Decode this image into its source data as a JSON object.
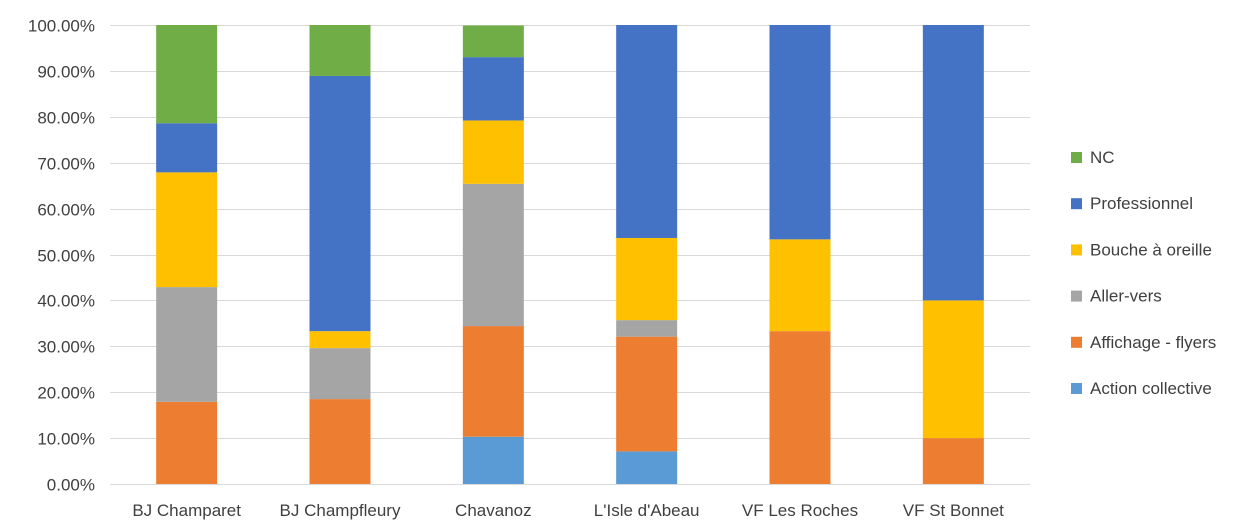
{
  "chart_data": {
    "type": "bar",
    "stacked": true,
    "percent": true,
    "title": "",
    "xlabel": "",
    "ylabel": "",
    "ylim": [
      0,
      1
    ],
    "y_ticks": [
      "0.00%",
      "10.00%",
      "20.00%",
      "30.00%",
      "40.00%",
      "50.00%",
      "60.00%",
      "70.00%",
      "80.00%",
      "90.00%",
      "100.00%"
    ],
    "grid": true,
    "legend_position": "right",
    "categories": [
      "BJ Champaret",
      "BJ Champfleury",
      "Chavanoz",
      "L'Isle d'Abeau",
      "VF Les Roches",
      "VF St Bonnet"
    ],
    "series": [
      {
        "name": "Action collective",
        "color": "#5B9BD5",
        "values": [
          0,
          0,
          0.103,
          0.071,
          0,
          0
        ]
      },
      {
        "name": "Affichage - flyers",
        "color": "#ED7D31",
        "values": [
          0.179,
          0.185,
          0.241,
          0.25,
          0.333,
          0.1
        ]
      },
      {
        "name": "Aller-vers",
        "color": "#A5A5A5",
        "values": [
          0.25,
          0.111,
          0.31,
          0.036,
          0,
          0
        ]
      },
      {
        "name": "Bouche à oreille",
        "color": "#FFC000",
        "values": [
          0.25,
          0.037,
          0.138,
          0.179,
          0.2,
          0.3
        ]
      },
      {
        "name": "Professionnel",
        "color": "#4472C4",
        "values": [
          0.107,
          0.556,
          0.138,
          0.464,
          0.467,
          0.6
        ]
      },
      {
        "name": "NC",
        "color": "#70AD47",
        "values": [
          0.214,
          0.111,
          0.069,
          0,
          0,
          0
        ]
      }
    ],
    "legend_order": [
      "NC",
      "Professionnel",
      "Bouche à oreille",
      "Aller-vers",
      "Affichage - flyers",
      "Action collective"
    ]
  }
}
